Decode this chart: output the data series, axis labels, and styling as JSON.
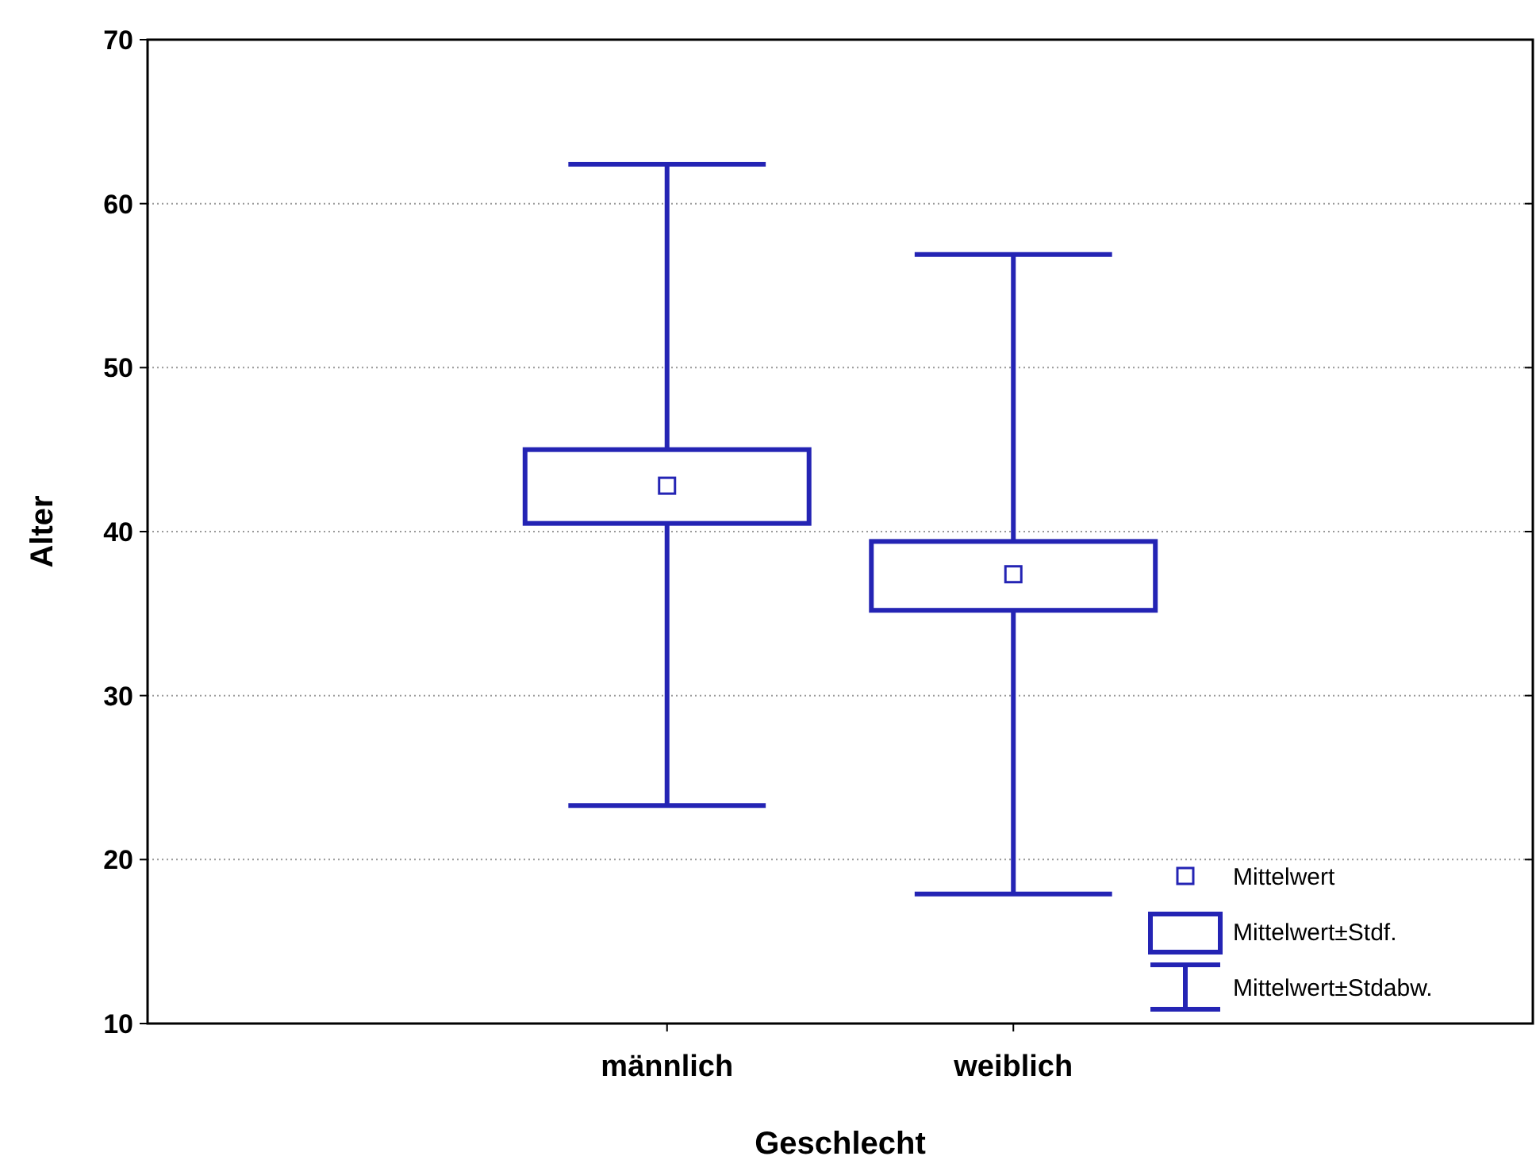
{
  "chart_data": {
    "type": "box",
    "xlabel": "Geschlecht",
    "ylabel": "Alter",
    "categories": [
      "männlich",
      "weiblich"
    ],
    "boxes": [
      {
        "low": 23.3,
        "q1": 40.5,
        "median": 42.8,
        "q3": 45.0,
        "high": 62.4
      },
      {
        "low": 17.9,
        "q1": 35.2,
        "median": 37.4,
        "q3": 39.4,
        "high": 56.9
      }
    ],
    "color": "#2424b4",
    "ylim": [
      10,
      70
    ],
    "yticks": [
      10,
      20,
      30,
      40,
      50,
      60,
      70
    ],
    "grid": "y",
    "annotations": [
      "Mittelwert",
      "Mittelwert±Stdf.",
      "Mittelwert±Stdabw."
    ]
  }
}
